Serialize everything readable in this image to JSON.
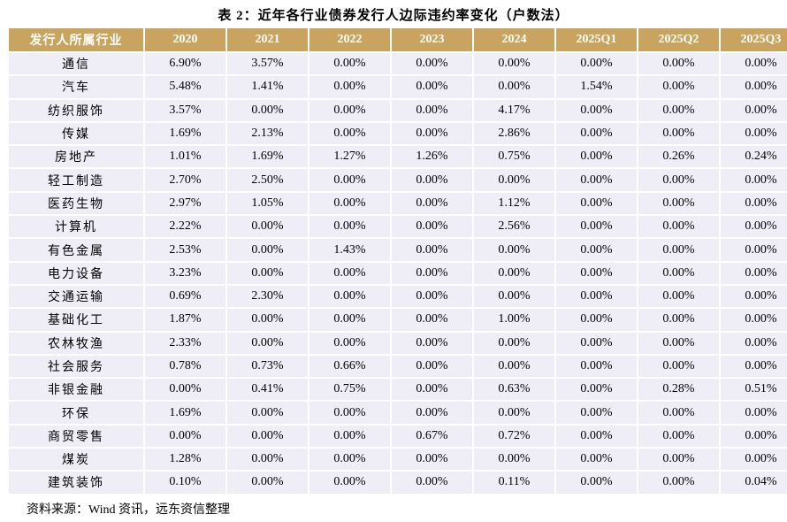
{
  "title": "表 2：近年各行业债券发行人边际违约率变化（户数法）",
  "table": {
    "headers": [
      "发行人所属行业",
      "2020",
      "2021",
      "2022",
      "2023",
      "2024",
      "2025Q1",
      "2025Q2",
      "2025Q3"
    ],
    "rows": [
      [
        "通信",
        "6.90%",
        "3.57%",
        "0.00%",
        "0.00%",
        "0.00%",
        "0.00%",
        "0.00%",
        "0.00%"
      ],
      [
        "汽车",
        "5.48%",
        "1.41%",
        "0.00%",
        "0.00%",
        "0.00%",
        "1.54%",
        "0.00%",
        "0.00%"
      ],
      [
        "纺织服饰",
        "3.57%",
        "0.00%",
        "0.00%",
        "0.00%",
        "4.17%",
        "0.00%",
        "0.00%",
        "0.00%"
      ],
      [
        "传媒",
        "1.69%",
        "2.13%",
        "0.00%",
        "0.00%",
        "2.86%",
        "0.00%",
        "0.00%",
        "0.00%"
      ],
      [
        "房地产",
        "1.01%",
        "1.69%",
        "1.27%",
        "1.26%",
        "0.75%",
        "0.00%",
        "0.26%",
        "0.24%"
      ],
      [
        "轻工制造",
        "2.70%",
        "2.50%",
        "0.00%",
        "0.00%",
        "0.00%",
        "0.00%",
        "0.00%",
        "0.00%"
      ],
      [
        "医药生物",
        "2.97%",
        "1.05%",
        "0.00%",
        "0.00%",
        "1.12%",
        "0.00%",
        "0.00%",
        "0.00%"
      ],
      [
        "计算机",
        "2.22%",
        "0.00%",
        "0.00%",
        "0.00%",
        "2.56%",
        "0.00%",
        "0.00%",
        "0.00%"
      ],
      [
        "有色金属",
        "2.53%",
        "0.00%",
        "1.43%",
        "0.00%",
        "0.00%",
        "0.00%",
        "0.00%",
        "0.00%"
      ],
      [
        "电力设备",
        "3.23%",
        "0.00%",
        "0.00%",
        "0.00%",
        "0.00%",
        "0.00%",
        "0.00%",
        "0.00%"
      ],
      [
        "交通运输",
        "0.69%",
        "2.30%",
        "0.00%",
        "0.00%",
        "0.00%",
        "0.00%",
        "0.00%",
        "0.00%"
      ],
      [
        "基础化工",
        "1.87%",
        "0.00%",
        "0.00%",
        "0.00%",
        "1.00%",
        "0.00%",
        "0.00%",
        "0.00%"
      ],
      [
        "农林牧渔",
        "2.33%",
        "0.00%",
        "0.00%",
        "0.00%",
        "0.00%",
        "0.00%",
        "0.00%",
        "0.00%"
      ],
      [
        "社会服务",
        "0.78%",
        "0.73%",
        "0.66%",
        "0.00%",
        "0.00%",
        "0.00%",
        "0.00%",
        "0.00%"
      ],
      [
        "非银金融",
        "0.00%",
        "0.41%",
        "0.75%",
        "0.00%",
        "0.63%",
        "0.00%",
        "0.28%",
        "0.51%"
      ],
      [
        "环保",
        "1.69%",
        "0.00%",
        "0.00%",
        "0.00%",
        "0.00%",
        "0.00%",
        "0.00%",
        "0.00%"
      ],
      [
        "商贸零售",
        "0.00%",
        "0.00%",
        "0.00%",
        "0.67%",
        "0.72%",
        "0.00%",
        "0.00%",
        "0.00%"
      ],
      [
        "煤炭",
        "1.28%",
        "0.00%",
        "0.00%",
        "0.00%",
        "0.00%",
        "0.00%",
        "0.00%",
        "0.00%"
      ],
      [
        "建筑装饰",
        "0.10%",
        "0.00%",
        "0.00%",
        "0.00%",
        "0.11%",
        "0.00%",
        "0.00%",
        "0.04%"
      ]
    ]
  },
  "source": "资料来源：Wind 资讯，远东资信整理",
  "colors": {
    "header_bg": "#c8a45e",
    "header_text": "#ffffff",
    "cell_bg": "#efeef6"
  }
}
